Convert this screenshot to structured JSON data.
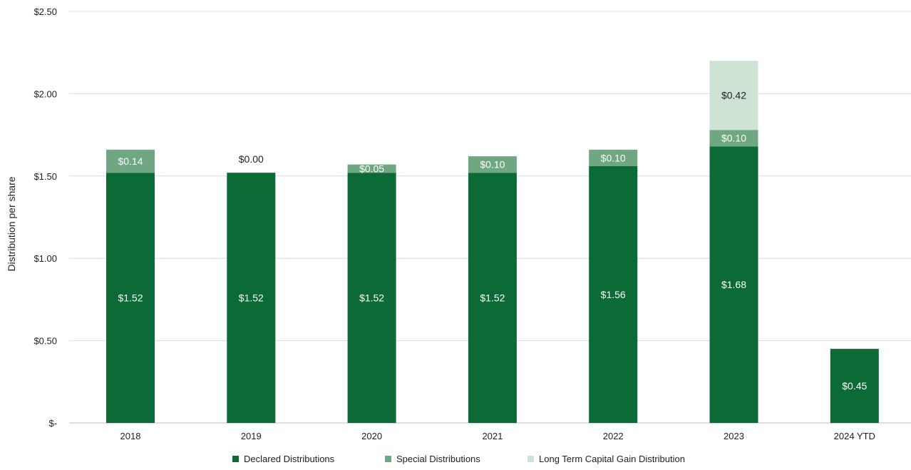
{
  "chart_data": {
    "type": "bar",
    "stacked": true,
    "title": "",
    "xlabel": "",
    "ylabel": "Distribution per share",
    "ylim": [
      0,
      2.5
    ],
    "y_ticks": [
      {
        "value": 0,
        "label": "$-"
      },
      {
        "value": 0.5,
        "label": "$0.50"
      },
      {
        "value": 1.0,
        "label": "$1.00"
      },
      {
        "value": 1.5,
        "label": "$1.50"
      },
      {
        "value": 2.0,
        "label": "$2.00"
      },
      {
        "value": 2.5,
        "label": "$2.50"
      }
    ],
    "grid": true,
    "legend_position": "bottom",
    "categories": [
      "2018",
      "2019",
      "2020",
      "2021",
      "2022",
      "2023",
      "2024 YTD"
    ],
    "series": [
      {
        "name": "Declared Distributions",
        "color": "#0b6a36",
        "label_color": "#ffffff",
        "values": [
          1.52,
          1.52,
          1.52,
          1.52,
          1.56,
          1.68,
          0.45
        ],
        "labels": [
          "$1.52",
          "$1.52",
          "$1.52",
          "$1.52",
          "$1.56",
          "$1.68",
          "$0.45"
        ]
      },
      {
        "name": "Special Distributions",
        "color": "#6fa782",
        "label_color": "#ffffff",
        "values": [
          0.14,
          0.0,
          0.05,
          0.1,
          0.1,
          0.1,
          null
        ],
        "labels": [
          "$0.14",
          "$0.00",
          "$0.05",
          "$0.10",
          "$0.10",
          "$0.10",
          null
        ]
      },
      {
        "name": "Long Term Capital Gain Distribution",
        "color": "#cfe3d5",
        "label_color": "#222222",
        "values": [
          null,
          null,
          null,
          null,
          null,
          0.42,
          null
        ],
        "labels": [
          null,
          null,
          null,
          null,
          null,
          "$0.42",
          null
        ]
      }
    ]
  }
}
